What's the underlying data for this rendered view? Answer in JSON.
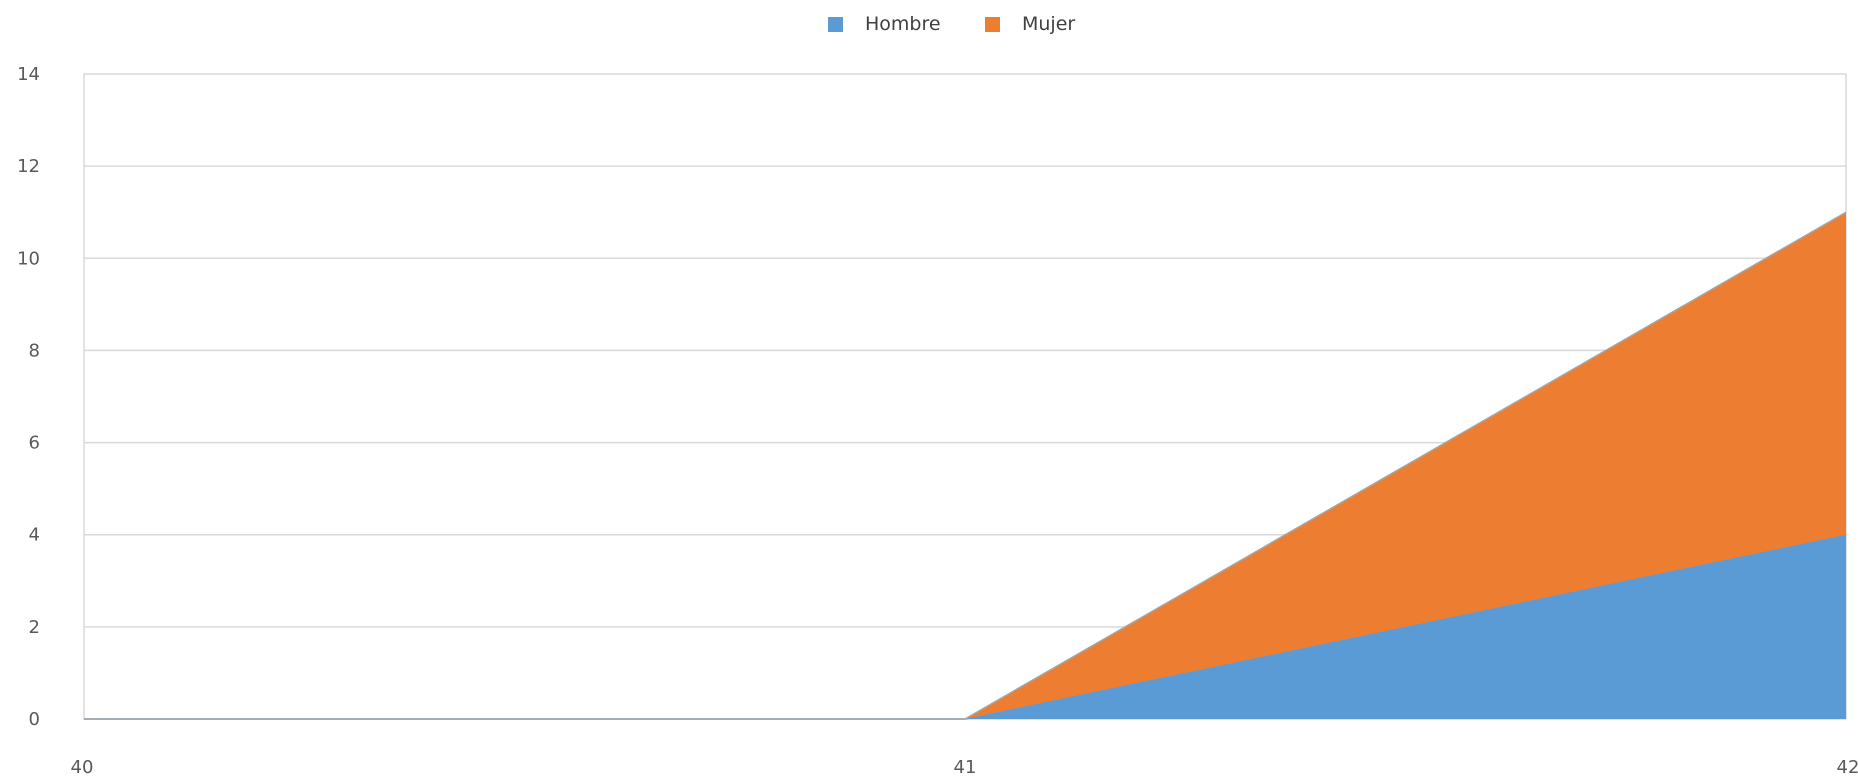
{
  "chart_data": {
    "type": "area",
    "stacked": true,
    "x": [
      40,
      41,
      42
    ],
    "x_tick_labels": [
      "40",
      "41",
      "42"
    ],
    "xlim": [
      40,
      42
    ],
    "ylim": [
      0,
      14
    ],
    "y_ticks": [
      0,
      2,
      4,
      6,
      8,
      10,
      12,
      14
    ],
    "y_tick_labels": [
      "0",
      "2",
      "4",
      "6",
      "8",
      "10",
      "12",
      "14"
    ],
    "grid": true,
    "legend_position": "top-center",
    "series": [
      {
        "name": "Hombre",
        "values": [
          0,
          0,
          4
        ],
        "color": "#5b9bd5"
      },
      {
        "name": "Mujer",
        "values": [
          0,
          0,
          7
        ],
        "color": "#ed7d31"
      }
    ],
    "title": "",
    "xlabel": "",
    "ylabel": ""
  }
}
